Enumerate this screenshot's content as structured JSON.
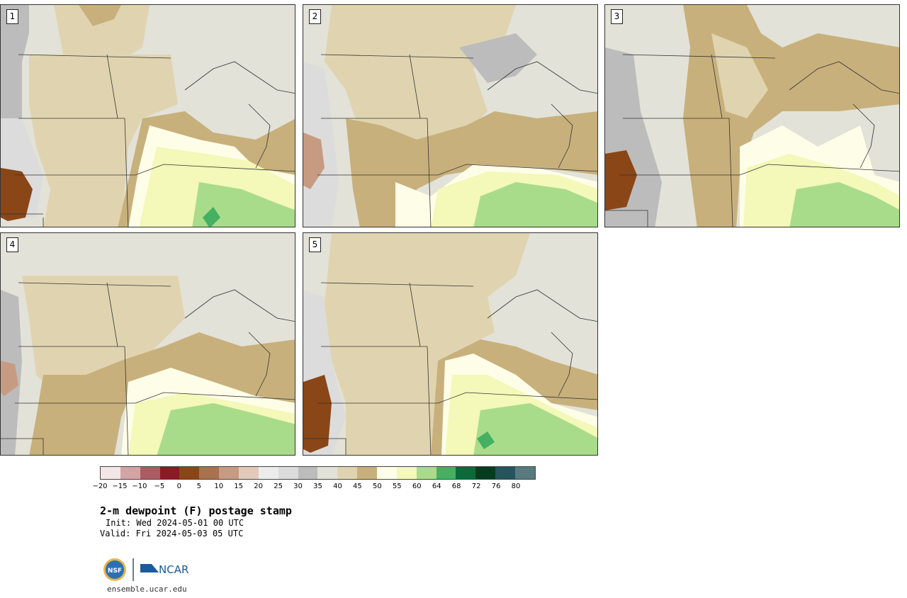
{
  "panels": [
    {
      "label": "1"
    },
    {
      "label": "2"
    },
    {
      "label": "3"
    },
    {
      "label": "4"
    },
    {
      "label": "5"
    }
  ],
  "colorbar": {
    "colors": [
      "#f3e6e6",
      "#d4a3a6",
      "#ab5c62",
      "#8a1a24",
      "#8a4616",
      "#a8724f",
      "#c79b82",
      "#e3c9b9",
      "#ececec",
      "#dcdcdc",
      "#bcbcbc",
      "#e2e2d8",
      "#e0d4b0",
      "#c8b07c",
      "#fefee8",
      "#f4f8b8",
      "#a8dc8a",
      "#46b062",
      "#096c3a",
      "#053c20",
      "#24545c",
      "#567a7e"
    ],
    "ticks": [
      "−20",
      "−15",
      "−10",
      "−5",
      "0",
      "5",
      "10",
      "15",
      "20",
      "25",
      "30",
      "35",
      "40",
      "45",
      "50",
      "55",
      "60",
      "64",
      "68",
      "72",
      "76",
      "80"
    ]
  },
  "title": "2-m dewpoint (F) postage stamp",
  "init": "Init: Wed 2024-05-01 00 UTC",
  "valid": "Valid: Fri 2024-05-03 05 UTC",
  "logo": {
    "nsf": "NSF",
    "ncar": "NCAR"
  },
  "site": "ensemble.ucar.edu",
  "map_colors": {
    "background": "#e2e2d8",
    "light_tan": "#e0d4b0",
    "tan": "#c8b07c",
    "grey": "#bcbcbc",
    "light_grey": "#dcdcdc",
    "cream": "#fefee8",
    "pale_yellow": "#f4f8b8",
    "light_green": "#a8dc8a",
    "green": "#46b062",
    "brown": "#8a4616",
    "pink_brown": "#c79b82"
  }
}
